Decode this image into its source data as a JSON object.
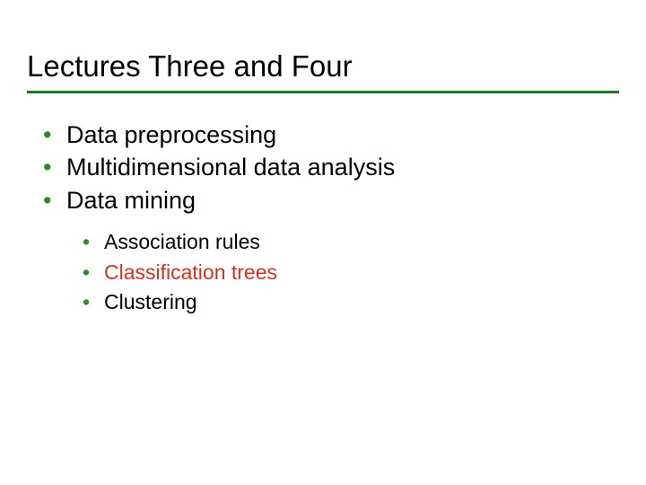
{
  "slide": {
    "title": "Lectures Three and Four",
    "title_color": "#000000",
    "title_fontsize": 33,
    "underline_color": "#227722",
    "bullet_color": "#2a8a2a",
    "bullets": [
      {
        "text": "Data preprocessing",
        "color": "#000000"
      },
      {
        "text": "Multidimensional data analysis",
        "color": "#000000"
      },
      {
        "text": "Data mining",
        "color": "#000000"
      }
    ],
    "sub_bullets": [
      {
        "text": "Association rules",
        "color": "#000000"
      },
      {
        "text": "Classification trees",
        "color": "#cc3322"
      },
      {
        "text": "Clustering",
        "color": "#000000"
      }
    ],
    "background_color": "#ffffff",
    "bullet_fontsize": 27,
    "sub_bullet_fontsize": 23
  }
}
